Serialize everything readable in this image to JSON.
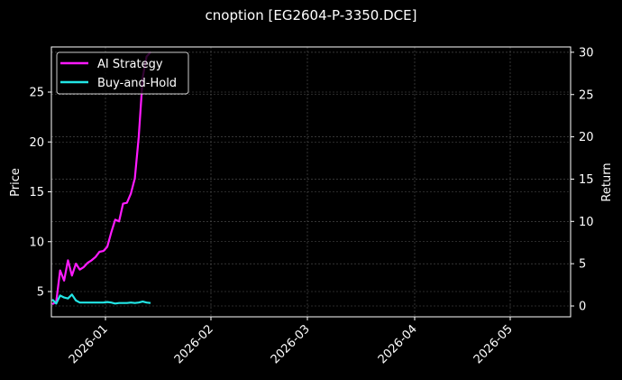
{
  "chart_data": {
    "type": "line",
    "title": "cnoption [EG2604-P-3350.DCE]",
    "xlabel": "",
    "ylabel_left": "Price",
    "ylabel_right": "Return",
    "x_ticks": [
      "2026-01",
      "2026-02",
      "2026-03",
      "2026-04",
      "2026-05"
    ],
    "y_ticks_left": [
      5,
      10,
      15,
      20,
      25
    ],
    "y_ticks_right": [
      0,
      5,
      10,
      15,
      20,
      25,
      30
    ],
    "ylim_left": [
      2.5,
      29.5
    ],
    "ylim_right": [
      -1.3,
      30.5
    ],
    "grid": true,
    "legend_position": "upper left",
    "colors": {
      "background": "#000000",
      "ai_strategy": "#ff1aff",
      "buy_and_hold": "#22e5e5",
      "grid": "#555555",
      "axes": "#ffffff"
    },
    "series": [
      {
        "name": "AI Strategy",
        "axis": "right",
        "color": "#ff1aff",
        "x": [
          "2025-12-17",
          "2025-12-18",
          "2025-12-19",
          "2025-12-22",
          "2025-12-23",
          "2025-12-24",
          "2025-12-25",
          "2025-12-26",
          "2025-12-29",
          "2025-12-30",
          "2025-12-31",
          "2026-01-05",
          "2026-01-06",
          "2026-01-07",
          "2026-01-08",
          "2026-01-09",
          "2026-01-12",
          "2026-01-13",
          "2026-01-14",
          "2026-01-15",
          "2026-01-16",
          "2026-01-19",
          "2026-01-20",
          "2026-01-21",
          "2026-01-22",
          "2026-01-23"
        ],
        "values": [
          0.2,
          0.5,
          4.2,
          3.0,
          5.4,
          3.6,
          5.0,
          4.3,
          4.6,
          5.1,
          5.4,
          5.8,
          6.4,
          6.5,
          7.0,
          8.7,
          10.2,
          10.0,
          12.1,
          12.2,
          13.3,
          15.1,
          20.0,
          27.0,
          29.5,
          30.0
        ]
      },
      {
        "name": "Buy-and-Hold",
        "axis": "left",
        "color": "#22e5e5",
        "x": [
          "2025-12-17",
          "2025-12-18",
          "2025-12-19",
          "2025-12-22",
          "2025-12-23",
          "2025-12-24",
          "2025-12-25",
          "2025-12-26",
          "2025-12-29",
          "2025-12-30",
          "2025-12-31",
          "2026-01-05",
          "2026-01-06",
          "2026-01-07",
          "2026-01-08",
          "2026-01-09",
          "2026-01-12",
          "2026-01-13",
          "2026-01-14",
          "2026-01-15",
          "2026-01-16",
          "2026-01-19",
          "2026-01-20",
          "2026-01-21",
          "2026-01-22",
          "2026-01-23"
        ],
        "values": [
          4.2,
          3.8,
          4.6,
          4.4,
          4.3,
          4.7,
          4.1,
          3.9,
          3.9,
          3.9,
          3.9,
          3.9,
          3.9,
          3.9,
          3.95,
          3.9,
          3.8,
          3.85,
          3.85,
          3.85,
          3.9,
          3.85,
          3.9,
          4.0,
          3.9,
          3.85
        ]
      }
    ]
  },
  "legend": {
    "items": [
      {
        "label": "AI Strategy",
        "color": "#ff1aff"
      },
      {
        "label": "Buy-and-Hold",
        "color": "#22e5e5"
      }
    ]
  }
}
